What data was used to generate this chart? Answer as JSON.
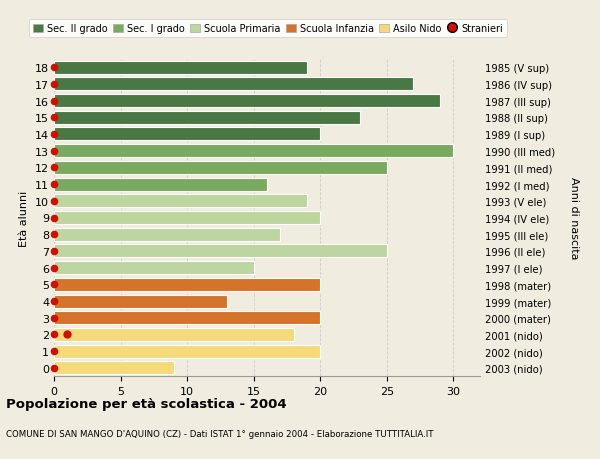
{
  "ages": [
    18,
    17,
    16,
    15,
    14,
    13,
    12,
    11,
    10,
    9,
    8,
    7,
    6,
    5,
    4,
    3,
    2,
    1,
    0
  ],
  "years": [
    "1985 (V sup)",
    "1986 (IV sup)",
    "1987 (III sup)",
    "1988 (II sup)",
    "1989 (I sup)",
    "1990 (III med)",
    "1991 (II med)",
    "1992 (I med)",
    "1993 (V ele)",
    "1994 (IV ele)",
    "1995 (III ele)",
    "1996 (II ele)",
    "1997 (I ele)",
    "1998 (mater)",
    "1999 (mater)",
    "2000 (mater)",
    "2001 (nido)",
    "2002 (nido)",
    "2003 (nido)"
  ],
  "values": [
    19,
    27,
    29,
    23,
    20,
    30,
    25,
    16,
    19,
    20,
    17,
    25,
    15,
    20,
    13,
    20,
    18,
    20,
    9
  ],
  "stranieri_x": [
    0,
    0,
    0,
    0,
    0,
    0,
    0,
    0,
    0,
    0,
    0,
    0,
    0,
    0,
    0,
    0,
    1,
    0,
    0
  ],
  "bar_colors": [
    "#4a7845",
    "#4a7845",
    "#4a7845",
    "#4a7845",
    "#4a7845",
    "#7aaa60",
    "#7aaa60",
    "#7aaa60",
    "#bdd5a0",
    "#bdd5a0",
    "#bdd5a0",
    "#bdd5a0",
    "#bdd5a0",
    "#d4732a",
    "#d4732a",
    "#d4732a",
    "#f5d97a",
    "#f5d97a",
    "#f5d97a"
  ],
  "legend_labels": [
    "Sec. II grado",
    "Sec. I grado",
    "Scuola Primaria",
    "Scuola Infanzia",
    "Asilo Nido",
    "Stranieri"
  ],
  "legend_colors": [
    "#4a7845",
    "#7aaa60",
    "#bdd5a0",
    "#d4732a",
    "#f5d97a",
    "#cc1100"
  ],
  "stranieri_color": "#cc1100",
  "title_bold": "Popolazione per età scolastica - 2004",
  "subtitle": "COMUNE DI SAN MANGO D'AQUINO (CZ) - Dati ISTAT 1° gennaio 2004 - Elaborazione TUTTITALIA.IT",
  "ylabel_left": "Età alunni",
  "ylabel_right": "Anni di nascita",
  "xlim": [
    0,
    32
  ],
  "xticks": [
    0,
    5,
    10,
    15,
    20,
    25,
    30
  ],
  "bg_color": "#f0ece0",
  "plot_bg_color": "#f0ece0",
  "bar_height": 0.78,
  "grid_color": "#cccccc",
  "dot_color": "#cc1100"
}
